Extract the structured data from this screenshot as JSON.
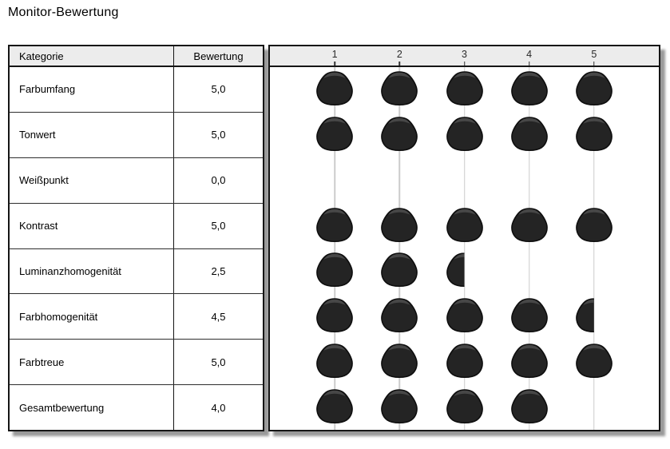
{
  "title": "Monitor-Bewertung",
  "table": {
    "headers": {
      "category": "Kategorie",
      "rating": "Bewertung"
    },
    "scale_labels": [
      "1",
      "2",
      "3",
      "4",
      "5"
    ],
    "rows": [
      {
        "category": "Farbumfang",
        "rating": "5,0",
        "value": 5.0
      },
      {
        "category": "Tonwert",
        "rating": "5,0",
        "value": 5.0
      },
      {
        "category": "Weißpunkt",
        "rating": "0,0",
        "value": 0.0
      },
      {
        "category": "Kontrast",
        "rating": "5,0",
        "value": 5.0
      },
      {
        "category": "Luminanzhomogenität",
        "rating": "2,5",
        "value": 2.5
      },
      {
        "category": "Farbhomogenität",
        "rating": "4,5",
        "value": 4.5
      },
      {
        "category": "Farbtreue",
        "rating": "5,0",
        "value": 5.0
      },
      {
        "category": "Gesamtbewertung",
        "rating": "4,0",
        "value": 4.0
      }
    ]
  },
  "chart_data": {
    "type": "bar",
    "title": "Monitor-Bewertung",
    "categories": [
      "Farbumfang",
      "Tonwert",
      "Weißpunkt",
      "Kontrast",
      "Luminanzhomogenität",
      "Farbhomogenität",
      "Farbtreue",
      "Gesamtbewertung"
    ],
    "values": [
      5.0,
      5.0,
      0.0,
      5.0,
      2.5,
      4.5,
      5.0,
      4.0
    ],
    "xlabel": "",
    "ylabel": "",
    "xlim": [
      0,
      5
    ],
    "x_ticks": [
      1,
      2,
      3,
      4,
      5
    ],
    "grid": true,
    "legend": false,
    "marker_style": "dark blob icon per unit, left-half blob for 0.5"
  },
  "colors": {
    "border": "#151515",
    "header_bg": "#ececec",
    "gridline": "#cccccc",
    "blob_fill": "#242424",
    "blob_highlight": "#474747",
    "shadow": "#878787"
  }
}
